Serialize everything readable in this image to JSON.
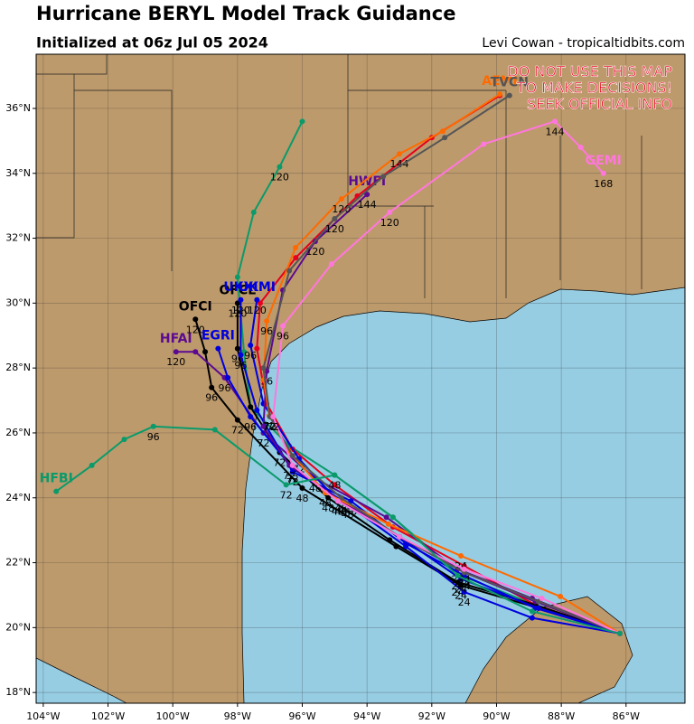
{
  "header": {
    "title": "Hurricane BERYL Model Track Guidance",
    "subtitle": "Initialized at 06z Jul 05 2024",
    "credit": "Levi Cowan - tropicaltidbits.com"
  },
  "warning": [
    "DO NOT USE THIS MAP",
    "TO MAKE DECISIONS!",
    "SEEK OFFICIAL INFO"
  ],
  "map": {
    "xlim": [
      -104.22,
      -84.18
    ],
    "ylim": [
      17.67,
      37.67
    ],
    "xticks": [
      {
        "value": -104,
        "label": "104°W"
      },
      {
        "value": -102,
        "label": "102°W"
      },
      {
        "value": -100,
        "label": "100°W"
      },
      {
        "value": -98,
        "label": "98°W"
      },
      {
        "value": -96,
        "label": "96°W"
      },
      {
        "value": -94,
        "label": "94°W"
      },
      {
        "value": -92,
        "label": "92°W"
      },
      {
        "value": -90,
        "label": "90°W"
      },
      {
        "value": -88,
        "label": "88°W"
      },
      {
        "value": -86,
        "label": "86°W"
      }
    ],
    "yticks": [
      {
        "value": 18,
        "label": "18°N"
      },
      {
        "value": 20,
        "label": "20°N"
      },
      {
        "value": 22,
        "label": "22°N"
      },
      {
        "value": 24,
        "label": "24°N"
      },
      {
        "value": 26,
        "label": "26°N"
      },
      {
        "value": 28,
        "label": "28°N"
      },
      {
        "value": 30,
        "label": "30°N"
      },
      {
        "value": 32,
        "label": "32°N"
      },
      {
        "value": 34,
        "label": "34°N"
      },
      {
        "value": 36,
        "label": "36°N"
      }
    ],
    "models": [
      {
        "color": "#0b9a6a",
        "lon": [
          -86.19,
          -88.8,
          -91.1,
          -93.2,
          -95.0,
          -96.4,
          -97.6,
          -97.8,
          -98.0,
          -97.5,
          -96.7,
          -96.0
        ],
        "lat": [
          19.82,
          20.7,
          21.6,
          23.4,
          24.7,
          25.6,
          26.8,
          28.5,
          30.8,
          32.8,
          34.2,
          35.6
        ],
        "hours": [
          null,
          null,
          null,
          null,
          null,
          null,
          null,
          null,
          null,
          null,
          120,
          null
        ]
      },
      {
        "color": "#e8001c",
        "lon": [
          -86.19,
          -88.8,
          -91.0,
          -93.2,
          -95.0,
          -96.3,
          -97.1,
          -97.4,
          -97.3,
          -96.2,
          -94.3,
          -92.0,
          -89.9
        ],
        "lat": [
          19.82,
          20.7,
          21.9,
          23.1,
          24.4,
          25.5,
          26.9,
          28.6,
          30.0,
          31.4,
          33.3,
          35.1,
          36.4
        ]
      },
      {
        "name": "OFCI",
        "color": "#000000",
        "lon": [
          -86.19,
          -88.7,
          -91.1,
          -93.1,
          -96.0,
          -98.0,
          -98.8,
          -99.0,
          -99.3
        ],
        "lat": [
          19.82,
          20.6,
          21.3,
          22.5,
          24.3,
          26.4,
          27.4,
          28.5,
          29.5
        ],
        "hours": [
          null,
          null,
          24,
          null,
          48,
          72,
          96,
          null,
          120
        ]
      },
      {
        "name": "OFCL",
        "color": "#000000",
        "lon": [
          -86.19,
          -88.8,
          -91.2,
          -93.3,
          -95.2,
          -96.7,
          -97.6,
          -98.0,
          -98.0
        ],
        "lat": [
          19.82,
          20.7,
          21.4,
          22.7,
          24.0,
          25.4,
          26.8,
          28.6,
          30.0
        ],
        "hours": [
          null,
          null,
          24,
          null,
          48,
          72,
          null,
          96,
          120
        ]
      },
      {
        "name": "HFAI",
        "color": "#5b0a91",
        "lon": [
          -86.19,
          -88.9,
          -91.2,
          -93.4,
          -95.6,
          -97.2,
          -98.4,
          -99.3,
          -99.9
        ],
        "lat": [
          19.82,
          20.9,
          21.8,
          23.4,
          24.6,
          26.0,
          27.7,
          28.5,
          28.5
        ],
        "hours": [
          null,
          null,
          24,
          null,
          48,
          72,
          96,
          null,
          120
        ]
      },
      {
        "name": "EGRI",
        "color": "#0000dd",
        "lon": [
          -86.19,
          -88.9,
          -91.0,
          -92.8,
          -94.6,
          -96.3,
          -97.6,
          -98.3,
          -98.6
        ],
        "lat": [
          19.82,
          20.3,
          21.1,
          22.5,
          23.8,
          24.9,
          26.5,
          27.7,
          28.6
        ],
        "hours": [
          null,
          null,
          24,
          null,
          48,
          72,
          96,
          null,
          null
        ]
      },
      {
        "name": "UKXI",
        "color": "#0000dd",
        "lon": [
          -86.19,
          -88.8,
          -91.0,
          -92.8,
          -94.5,
          -96.3,
          -97.4,
          -97.9,
          -97.9
        ],
        "lat": [
          19.82,
          20.6,
          21.6,
          22.6,
          23.9,
          24.8,
          26.7,
          28.4,
          30.1
        ],
        "hours": [
          null,
          null,
          24,
          null,
          48,
          72,
          null,
          96,
          120
        ]
      },
      {
        "name": "UKMI",
        "color": "#0000dd",
        "lon": [
          -86.19,
          -88.7,
          -91.1,
          -93.0,
          -94.9,
          -96.1,
          -97.2,
          -97.6,
          -97.4
        ],
        "lat": [
          19.82,
          20.6,
          21.5,
          22.8,
          23.9,
          25.2,
          26.9,
          28.7,
          30.1
        ],
        "hours": [
          null,
          null,
          24,
          null,
          48,
          72,
          null,
          96,
          120
        ]
      },
      {
        "name": "HWFI",
        "color": "#5b0a91",
        "lon": [
          -86.19,
          -88.8,
          -91.0,
          -93.0,
          -94.8,
          -96.4,
          -97.2,
          -97.1,
          -96.6,
          -95.6,
          -94.0
        ],
        "lat": [
          19.82,
          20.8,
          21.7,
          22.8,
          23.9,
          25.0,
          26.2,
          27.9,
          30.4,
          31.9,
          33.35
        ],
        "hours": [
          null,
          null,
          24,
          null,
          48,
          72,
          null,
          96,
          null,
          120,
          144
        ]
      },
      {
        "name": "AEMI",
        "color": "#ff6a00",
        "lon": [
          -86.19,
          -88.03,
          -91.1,
          -93.34,
          -95.29,
          -96.4,
          -97.02,
          -97.19,
          -97.1,
          -96.21,
          -94.79,
          -93.0,
          -91.66,
          -89.9
        ],
        "lat": [
          19.82,
          20.96,
          22.21,
          23.19,
          24.16,
          25.42,
          26.53,
          27.64,
          29.45,
          31.71,
          33.21,
          34.6,
          35.3,
          36.44
        ],
        "hours": [
          null,
          null,
          24,
          null,
          48,
          null,
          72,
          null,
          96,
          null,
          120,
          144,
          null,
          null
        ]
      },
      {
        "name": "TVCN",
        "color": "#555555",
        "lon": [
          -86.19,
          -88.7,
          -91.0,
          -93.0,
          -94.8,
          -96.3,
          -97.0,
          -97.2,
          -96.4,
          -95.0,
          -93.5,
          -91.6,
          -89.6
        ],
        "lat": [
          19.82,
          20.8,
          21.7,
          22.8,
          24.0,
          25.3,
          26.5,
          28.0,
          31.0,
          32.6,
          33.9,
          35.1,
          36.4
        ],
        "hours": [
          null,
          null,
          24,
          null,
          48,
          null,
          72,
          null,
          null,
          120,
          null,
          null,
          null
        ]
      },
      {
        "name": "GEMI",
        "color": "#ff77dd",
        "lon": [
          -86.19,
          -88.6,
          -91.0,
          -93.0,
          -94.9,
          -96.3,
          -96.9,
          -96.6,
          -95.1,
          -93.3,
          -90.4,
          -88.2,
          -87.4,
          -86.7
        ],
        "lat": [
          19.82,
          20.9,
          21.8,
          22.8,
          23.9,
          25.0,
          26.5,
          29.3,
          31.2,
          32.8,
          34.9,
          35.6,
          34.8,
          34.0
        ],
        "hours": [
          null,
          null,
          24,
          null,
          48,
          null,
          72,
          96,
          null,
          120,
          null,
          144,
          null,
          168
        ]
      },
      {
        "name": "HFBI",
        "color": "#0b9a6a",
        "lon": [
          -86.19,
          -88.9,
          -91.2,
          -93.2,
          -95.0,
          -96.5,
          -98.7,
          -100.6,
          -101.5,
          -102.5,
          -103.6
        ],
        "lat": [
          19.82,
          20.5,
          21.6,
          23.4,
          24.7,
          24.4,
          26.1,
          26.2,
          25.8,
          25.0,
          24.2
        ],
        "hours": [
          null,
          null,
          24,
          null,
          48,
          72,
          null,
          96,
          null,
          null,
          null
        ]
      }
    ]
  }
}
